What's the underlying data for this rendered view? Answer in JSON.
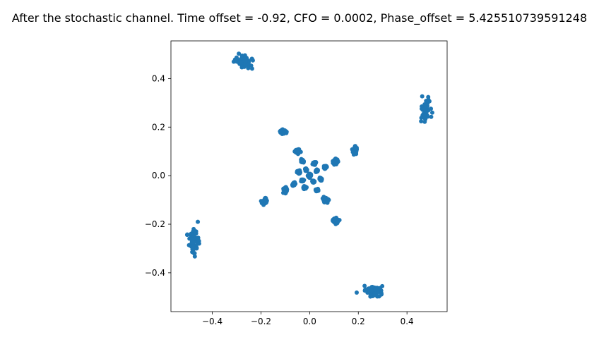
{
  "chart_data": {
    "type": "scatter",
    "title": "After the stochastic channel. Time offset = -0.92, CFO = 0.0002, Phase_offset = 5.425510739591248",
    "xlabel": "",
    "ylabel": "",
    "xlim": [
      -0.57,
      0.565
    ],
    "ylim": [
      -0.56,
      0.555
    ],
    "x_ticks": [
      -0.4,
      -0.2,
      0.0,
      0.2,
      0.4
    ],
    "y_ticks": [
      -0.4,
      -0.2,
      0.0,
      0.2,
      0.4
    ],
    "x_tick_labels": [
      "−0.4",
      "−0.2",
      "0.0",
      "0.2",
      "0.4"
    ],
    "y_tick_labels": [
      "−0.4",
      "−0.2",
      "0.0",
      "0.2",
      "0.4"
    ],
    "grid": false,
    "legend": "none",
    "marker_color": "#1f77b4",
    "clusters": [
      {
        "x": -0.27,
        "y": 0.47,
        "spread_x": 0.03,
        "spread_y": 0.02
      },
      {
        "x": 0.475,
        "y": 0.27,
        "spread_x": 0.015,
        "spread_y": 0.04
      },
      {
        "x": -0.475,
        "y": -0.27,
        "spread_x": 0.015,
        "spread_y": 0.04
      },
      {
        "x": 0.265,
        "y": -0.475,
        "spread_x": 0.03,
        "spread_y": 0.02
      },
      {
        "x": -0.11,
        "y": 0.18,
        "spread_x": 0.01,
        "spread_y": 0.008
      },
      {
        "x": 0.185,
        "y": 0.105,
        "spread_x": 0.007,
        "spread_y": 0.01
      },
      {
        "x": -0.185,
        "y": -0.105,
        "spread_x": 0.007,
        "spread_y": 0.01
      },
      {
        "x": 0.105,
        "y": -0.185,
        "spread_x": 0.01,
        "spread_y": 0.008
      },
      {
        "x": -0.05,
        "y": 0.1,
        "spread_x": 0.008,
        "spread_y": 0.007
      },
      {
        "x": 0.105,
        "y": 0.06,
        "spread_x": 0.007,
        "spread_y": 0.008
      },
      {
        "x": -0.1,
        "y": -0.06,
        "spread_x": 0.007,
        "spread_y": 0.008
      },
      {
        "x": 0.065,
        "y": -0.1,
        "spread_x": 0.008,
        "spread_y": 0.007
      },
      {
        "x": -0.03,
        "y": 0.06,
        "spread_x": 0.004,
        "spread_y": 0.004
      },
      {
        "x": 0.02,
        "y": 0.05,
        "spread_x": 0.004,
        "spread_y": 0.004
      },
      {
        "x": 0.065,
        "y": 0.035,
        "spread_x": 0.004,
        "spread_y": 0.004
      },
      {
        "x": -0.015,
        "y": 0.025,
        "spread_x": 0.003,
        "spread_y": 0.003
      },
      {
        "x": 0.03,
        "y": 0.02,
        "spread_x": 0.003,
        "spread_y": 0.003
      },
      {
        "x": -0.045,
        "y": 0.015,
        "spread_x": 0.004,
        "spread_y": 0.004
      },
      {
        "x": 0.0,
        "y": 0.0,
        "spread_x": 0.005,
        "spread_y": 0.005
      },
      {
        "x": 0.045,
        "y": -0.015,
        "spread_x": 0.004,
        "spread_y": 0.004
      },
      {
        "x": -0.03,
        "y": -0.02,
        "spread_x": 0.003,
        "spread_y": 0.003
      },
      {
        "x": 0.015,
        "y": -0.025,
        "spread_x": 0.003,
        "spread_y": 0.003
      },
      {
        "x": -0.065,
        "y": -0.035,
        "spread_x": 0.004,
        "spread_y": 0.004
      },
      {
        "x": -0.02,
        "y": -0.05,
        "spread_x": 0.004,
        "spread_y": 0.004
      },
      {
        "x": 0.03,
        "y": -0.06,
        "spread_x": 0.004,
        "spread_y": 0.004
      }
    ]
  }
}
